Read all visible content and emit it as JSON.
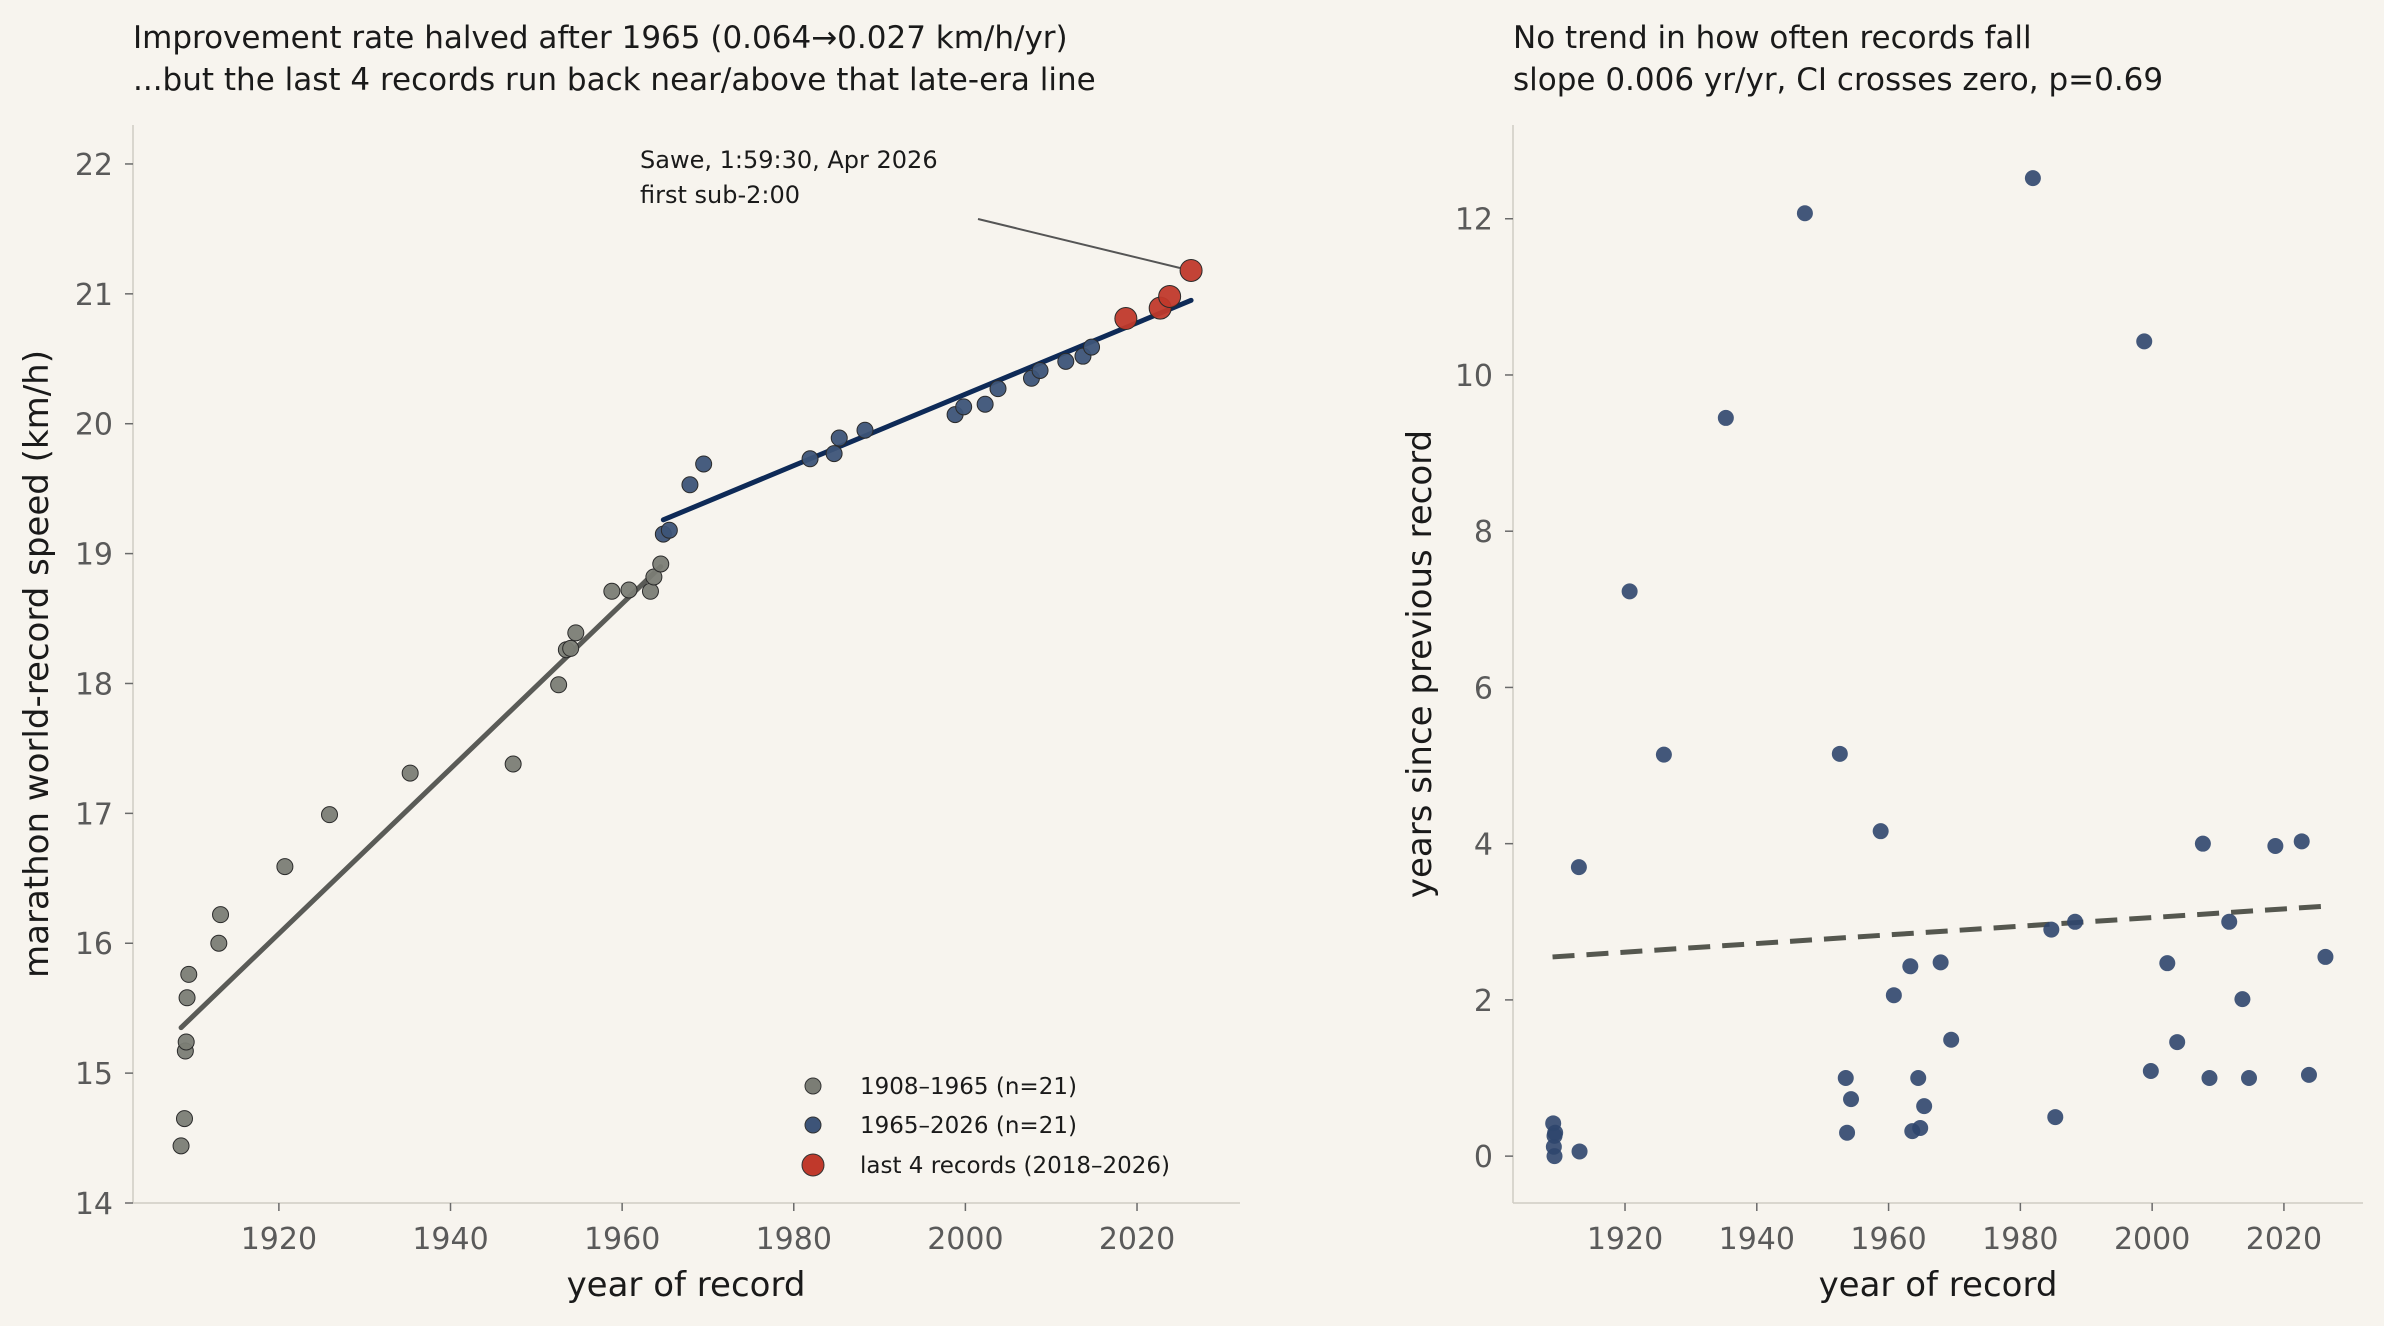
{
  "colors": {
    "background": "#f7f4ee",
    "early": "#7b7d75",
    "late": "#3d5478",
    "recent": "#c0392b",
    "early_fit": "#5a5b57",
    "late_fit": "#0e2a57",
    "gap_fit": "#55574f",
    "gap_points": "#2f466d"
  },
  "chart_data": [
    {
      "type": "scatter",
      "title": "Improvement rate halved after 1965 (0.064→0.027 km/h/yr)",
      "subtitle": "...but the last 4 records run back near/above that late-era line",
      "xlabel": "year of record",
      "ylabel": "marathon world-record speed (km/h)",
      "xlim": [
        1903,
        2032
      ],
      "ylim": [
        14,
        22.3
      ],
      "xticks": [
        "1920",
        "1940",
        "1960",
        "1980",
        "2000",
        "2020"
      ],
      "yticks": [
        "14",
        "15",
        "16",
        "17",
        "18",
        "19",
        "20",
        "21",
        "22"
      ],
      "grid": false,
      "legend_position": "lower-right",
      "annotation": {
        "line1": "Sawe, 1:59:30, Apr 2026",
        "line2": "first sub-2:00",
        "x": 2026.3,
        "y": 21.18
      },
      "series": [
        {
          "name": "1908–1965 (n=21)",
          "points": [
            [
              1908.6,
              14.44
            ],
            [
              1909.0,
              14.65
            ],
            [
              1909.1,
              15.17
            ],
            [
              1909.2,
              15.24
            ],
            [
              1909.3,
              15.58
            ],
            [
              1909.5,
              15.76
            ],
            [
              1913.0,
              16.0
            ],
            [
              1913.2,
              16.22
            ],
            [
              1920.7,
              16.59
            ],
            [
              1925.9,
              16.99
            ],
            [
              1935.3,
              17.31
            ],
            [
              1947.3,
              17.38
            ],
            [
              1952.6,
              17.99
            ],
            [
              1953.5,
              18.26
            ],
            [
              1954.0,
              18.27
            ],
            [
              1954.6,
              18.39
            ],
            [
              1958.8,
              18.71
            ],
            [
              1960.8,
              18.72
            ],
            [
              1963.3,
              18.71
            ],
            [
              1963.7,
              18.82
            ],
            [
              1964.5,
              18.92
            ]
          ]
        },
        {
          "name": "1965–2026 (n=21)",
          "points": [
            [
              1964.8,
              19.15
            ],
            [
              1965.5,
              19.18
            ],
            [
              1967.9,
              19.53
            ],
            [
              1969.5,
              19.69
            ],
            [
              1981.9,
              19.73
            ],
            [
              1984.7,
              19.77
            ],
            [
              1985.3,
              19.89
            ],
            [
              1988.3,
              19.95
            ],
            [
              1998.8,
              20.07
            ],
            [
              1999.8,
              20.13
            ],
            [
              2002.3,
              20.15
            ],
            [
              2003.8,
              20.27
            ],
            [
              2007.7,
              20.35
            ],
            [
              2008.7,
              20.41
            ],
            [
              2011.7,
              20.48
            ],
            [
              2013.7,
              20.52
            ],
            [
              2014.7,
              20.59
            ]
          ]
        },
        {
          "name": "last 4 records (2018–2026)",
          "points": [
            [
              2018.7,
              20.81
            ],
            [
              2022.7,
              20.89
            ],
            [
              2023.8,
              20.98
            ],
            [
              2026.3,
              21.18
            ]
          ]
        }
      ],
      "fits": [
        {
          "from": [
            1908.6,
            15.35
          ],
          "to": [
            1964.5,
            18.9
          ]
        },
        {
          "from": [
            1964.8,
            19.26
          ],
          "to": [
            2026.3,
            20.95
          ]
        }
      ]
    },
    {
      "type": "scatter",
      "title": "No trend in how often records fall",
      "subtitle": "slope 0.006 yr/yr, CI crosses zero, p=0.69",
      "xlabel": "year of record",
      "ylabel": "years since previous record",
      "xlim": [
        1903,
        2032
      ],
      "ylim": [
        -0.6,
        13.2
      ],
      "xticks": [
        "1920",
        "1940",
        "1960",
        "1980",
        "2000",
        "2020"
      ],
      "yticks": [
        "0",
        "2",
        "4",
        "6",
        "8",
        "10",
        "12"
      ],
      "grid": false,
      "points": [
        [
          1909.1,
          0.42
        ],
        [
          1909.2,
          0.12
        ],
        [
          1909.3,
          0.26
        ],
        [
          1909.4,
          0.3
        ],
        [
          1909.3,
          0.0
        ],
        [
          1913.0,
          3.7
        ],
        [
          1913.1,
          0.06
        ],
        [
          1920.7,
          7.23
        ],
        [
          1925.9,
          5.14
        ],
        [
          1935.3,
          9.45
        ],
        [
          1947.3,
          12.07
        ],
        [
          1952.6,
          5.15
        ],
        [
          1953.5,
          1.0
        ],
        [
          1953.7,
          0.3
        ],
        [
          1954.3,
          0.73
        ],
        [
          1958.8,
          4.16
        ],
        [
          1960.8,
          2.06
        ],
        [
          1963.3,
          2.43
        ],
        [
          1963.6,
          0.32
        ],
        [
          1964.5,
          1.0
        ],
        [
          1964.8,
          0.36
        ],
        [
          1965.4,
          0.64
        ],
        [
          1967.9,
          2.48
        ],
        [
          1969.5,
          1.49
        ],
        [
          1981.9,
          12.52
        ],
        [
          1984.7,
          2.9
        ],
        [
          1985.3,
          0.5
        ],
        [
          1988.3,
          3.0
        ],
        [
          1998.8,
          10.43
        ],
        [
          1999.8,
          1.09
        ],
        [
          2002.3,
          2.47
        ],
        [
          2003.8,
          1.46
        ],
        [
          2007.7,
          4.0
        ],
        [
          2008.7,
          1.0
        ],
        [
          2011.7,
          3.0
        ],
        [
          2013.7,
          2.01
        ],
        [
          2014.7,
          1.0
        ],
        [
          2018.7,
          3.97
        ],
        [
          2022.7,
          4.03
        ],
        [
          2023.8,
          1.04
        ],
        [
          2026.3,
          2.55
        ]
      ],
      "trend": {
        "from": [
          1909.0,
          2.55
        ],
        "to": [
          2026.3,
          3.2
        ]
      }
    }
  ]
}
